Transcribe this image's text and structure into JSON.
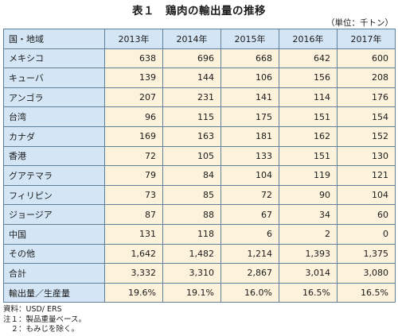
{
  "title": "表１　鶏肉の輸出量の推移",
  "unit": "（単位：千トン）",
  "table": {
    "header": [
      "国・地域",
      "2013年",
      "2014年",
      "2015年",
      "2016年",
      "2017年"
    ],
    "rows": [
      {
        "label": "メキシコ",
        "values": [
          "638",
          "696",
          "668",
          "642",
          "600"
        ]
      },
      {
        "label": "キューバ",
        "values": [
          "139",
          "144",
          "106",
          "156",
          "208"
        ]
      },
      {
        "label": "アンゴラ",
        "values": [
          "207",
          "231",
          "141",
          "114",
          "176"
        ]
      },
      {
        "label": "台湾",
        "values": [
          "96",
          "115",
          "175",
          "151",
          "154"
        ]
      },
      {
        "label": "カナダ",
        "values": [
          "169",
          "163",
          "181",
          "162",
          "152"
        ]
      },
      {
        "label": "香港",
        "values": [
          "72",
          "105",
          "133",
          "151",
          "130"
        ]
      },
      {
        "label": "グアテマラ",
        "values": [
          "79",
          "84",
          "104",
          "119",
          "121"
        ]
      },
      {
        "label": "フィリピン",
        "values": [
          "73",
          "85",
          "72",
          "90",
          "104"
        ]
      },
      {
        "label": "ジョージア",
        "values": [
          "87",
          "88",
          "67",
          "34",
          "60"
        ]
      },
      {
        "label": "中国",
        "values": [
          "131",
          "118",
          "6",
          "2",
          "0"
        ]
      },
      {
        "label": "その他",
        "values": [
          "1,642",
          "1,482",
          "1,214",
          "1,393",
          "1,375"
        ]
      },
      {
        "label": "合計",
        "values": [
          "3,332",
          "3,310",
          "2,867",
          "3,014",
          "3,080"
        ]
      },
      {
        "label": "輸出量／生産量",
        "values": [
          "19.6%",
          "19.1%",
          "16.0%",
          "16.5%",
          "16.5%"
        ]
      }
    ]
  },
  "notes": [
    "資料：USD/ ERS",
    "注１：製品重量ベース。",
    "　２：もみじを除く。"
  ],
  "colors": {
    "header_bg": "#d4e6f5",
    "value_bg": "#fdf3dc",
    "border": "#5f7f9a"
  }
}
